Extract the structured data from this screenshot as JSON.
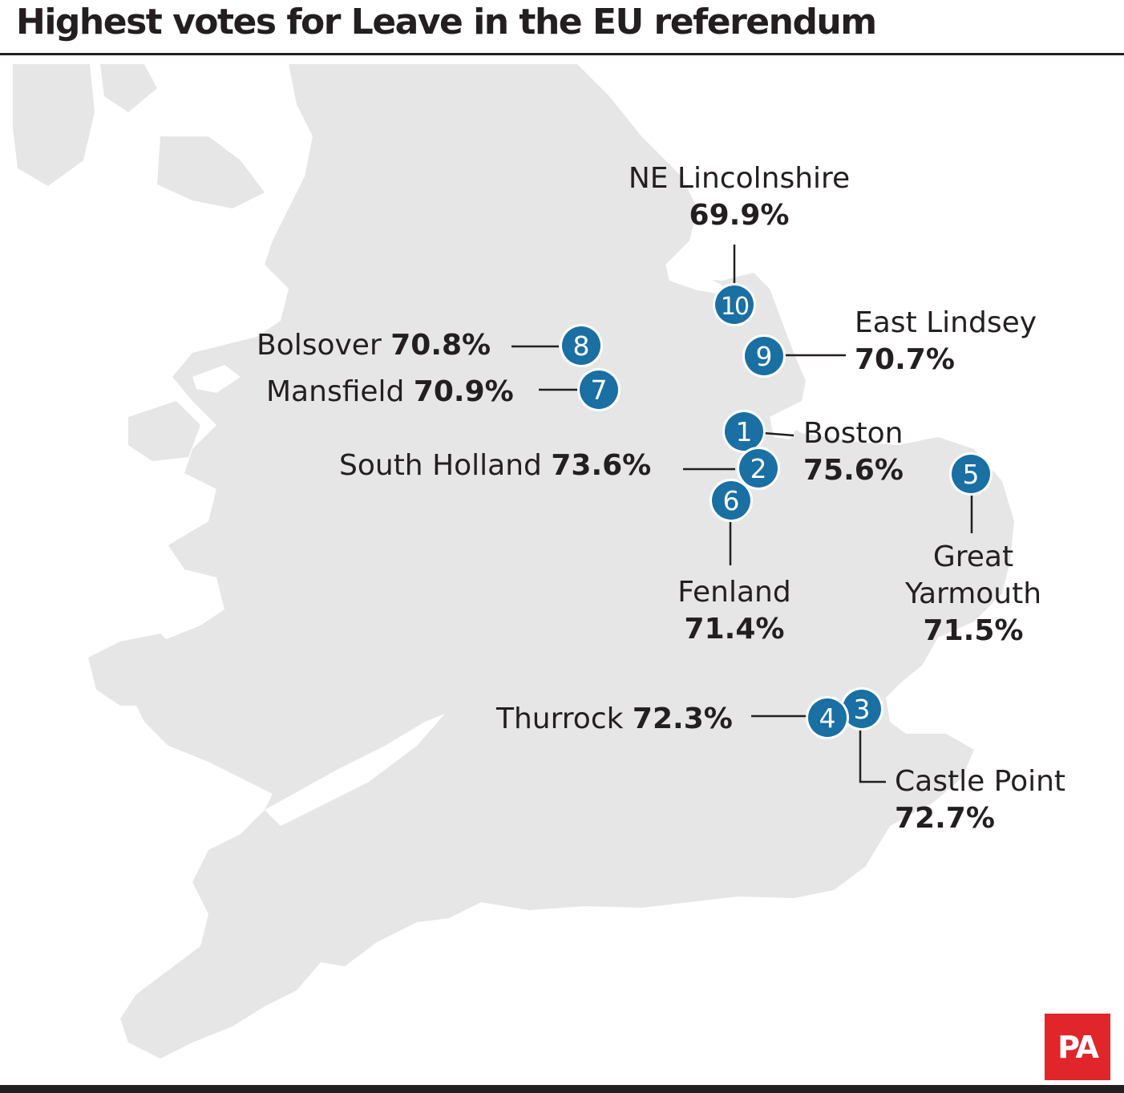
{
  "title": "Highest votes for Leave in the EU referendum",
  "colors": {
    "land": "#e6e6e6",
    "marker": "#1a6fa3",
    "leader": "#231f20",
    "text": "#231f20",
    "logo_bg": "#e0262b"
  },
  "markers": [
    {
      "rank": "1",
      "name": "Boston",
      "pct": "75.6%"
    },
    {
      "rank": "2",
      "name": "South Holland",
      "pct": "73.6%"
    },
    {
      "rank": "3",
      "name": "Castle Point",
      "pct": "72.7%"
    },
    {
      "rank": "4",
      "name": "Thurrock",
      "pct": "72.3%"
    },
    {
      "rank": "5",
      "name": "Great Yarmouth",
      "name_line1": "Great",
      "name_line2": "Yarmouth",
      "pct": "71.5%"
    },
    {
      "rank": "6",
      "name": "Fenland",
      "pct": "71.4%"
    },
    {
      "rank": "7",
      "name": "Mansfield",
      "pct": "70.9%"
    },
    {
      "rank": "8",
      "name": "Bolsover",
      "pct": "70.8%"
    },
    {
      "rank": "9",
      "name": "East Lindsey",
      "pct": "70.7%"
    },
    {
      "rank": "10",
      "name": "NE Lincolnshire",
      "pct": "69.9%"
    }
  ],
  "logo": "PA"
}
